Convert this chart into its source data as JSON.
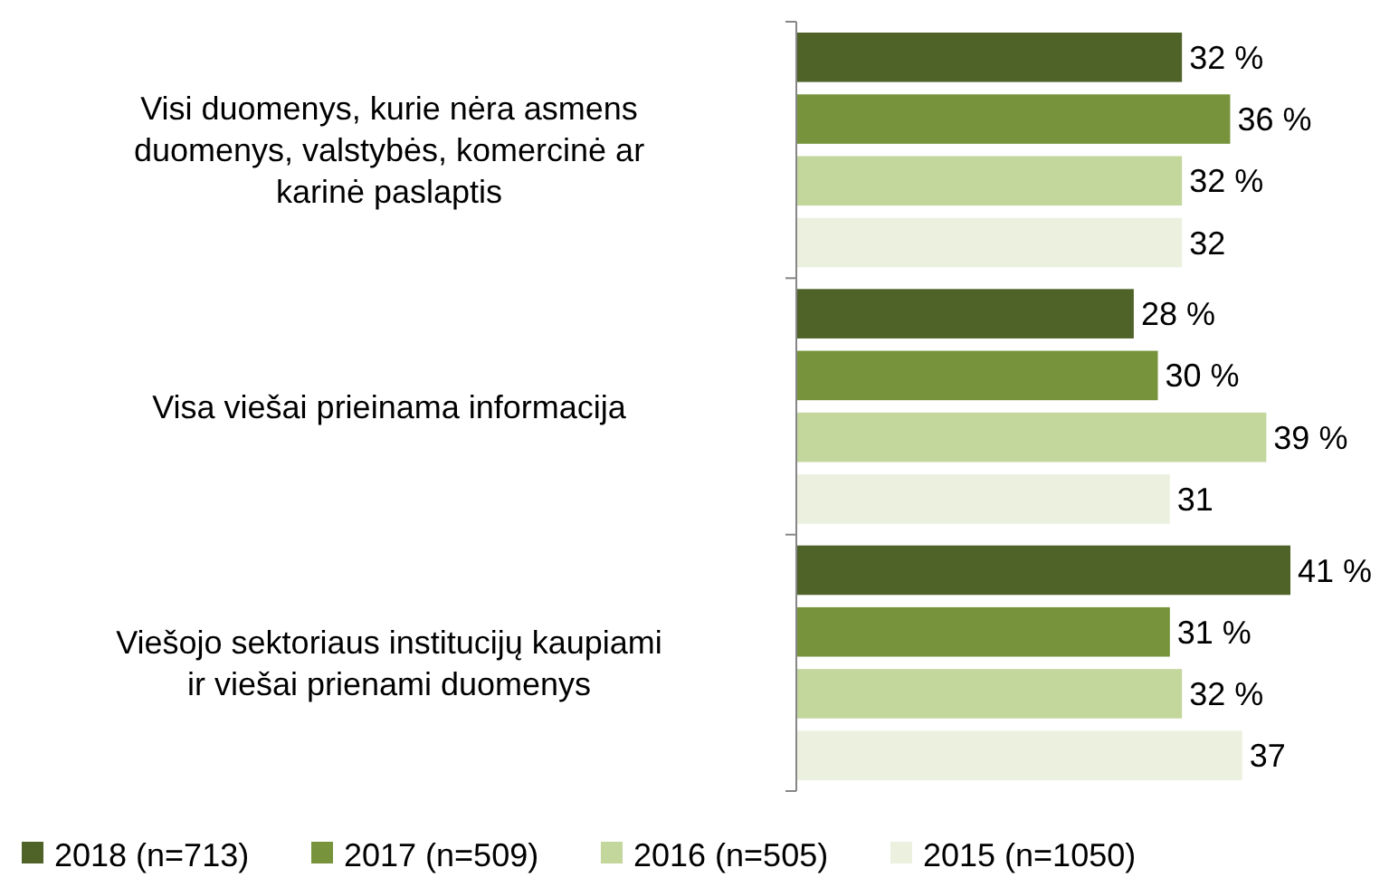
{
  "chart_data": {
    "type": "bar",
    "orientation": "horizontal",
    "categories": [
      "Visi duomenys, kurie nėra asmens duomenys, valstybės, komercinė ar karinė paslaptis",
      "Visa viešai prieinama informacija",
      "Viešojo sektoriaus institucijų kaupiami ir viešai prienami duomenys"
    ],
    "series": [
      {
        "name": "2018 (n=713)",
        "color": "#4f6228",
        "values": [
          32,
          28,
          41
        ],
        "value_labels": [
          "32 %",
          "28 %",
          "41 %"
        ]
      },
      {
        "name": "2017 (n=509)",
        "color": "#77933c",
        "values": [
          36,
          30,
          31
        ],
        "value_labels": [
          "36 %",
          "30 %",
          "31 %"
        ]
      },
      {
        "name": "2016 (n=505)",
        "color": "#c3d69b",
        "values": [
          32,
          39,
          32
        ],
        "value_labels": [
          "32 %",
          "39 %",
          "32 %"
        ]
      },
      {
        "name": "2015 (n=1050)",
        "color": "#ebf1de",
        "values": [
          32,
          31,
          37
        ],
        "value_labels": [
          "32",
          "31",
          "37"
        ]
      }
    ],
    "legend": "bottom"
  }
}
